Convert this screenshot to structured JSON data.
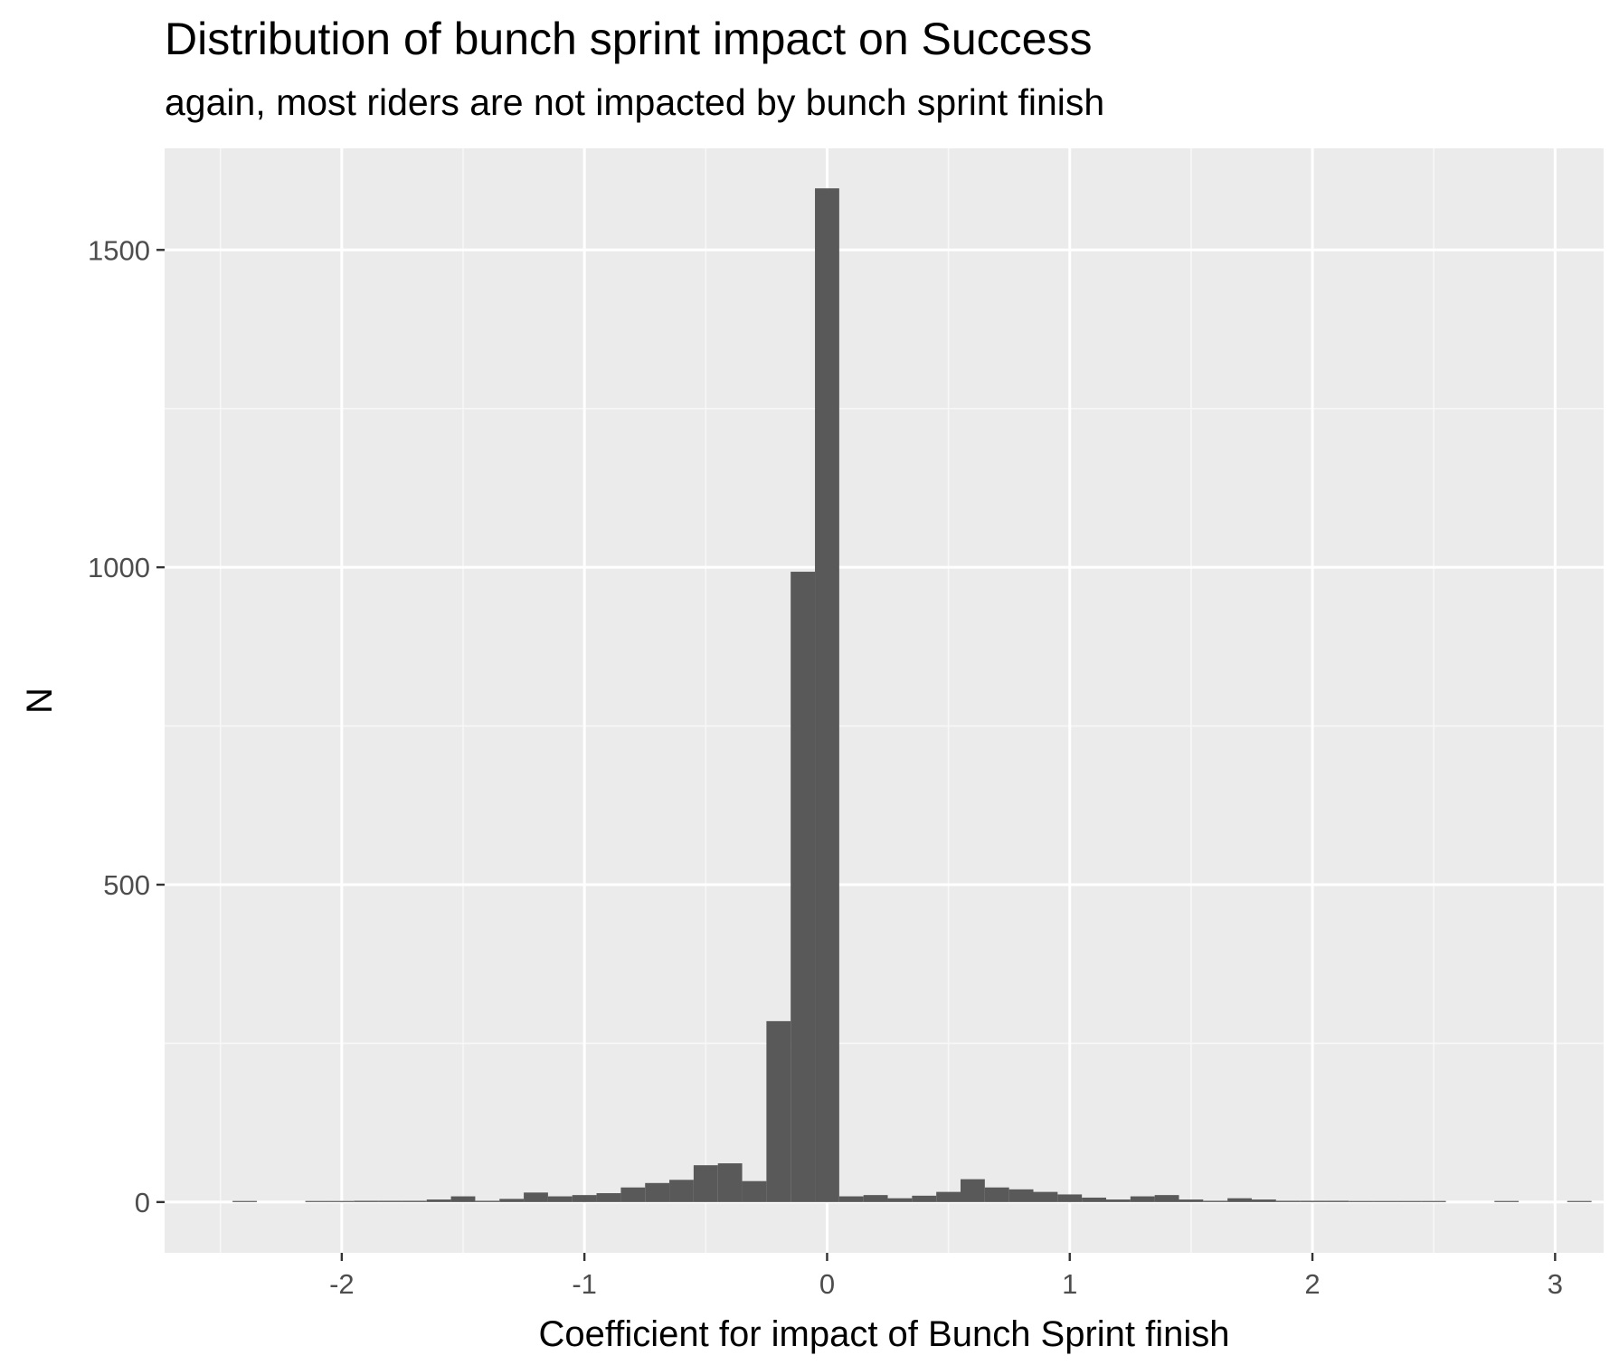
{
  "chart_data": {
    "type": "bar",
    "title": "Distribution of bunch sprint impact on Success",
    "subtitle": "again, most riders are not impacted by bunch sprint finish",
    "xlabel": "Coefficient for impact of Bunch Sprint finish",
    "ylabel": "N",
    "xlim": [
      -2.73,
      3.2
    ],
    "ylim": [
      -80,
      1660
    ],
    "xticks": [
      -2,
      -1,
      0,
      1,
      2,
      3
    ],
    "xtick_labels": [
      "-2",
      "-1",
      "0",
      "1",
      "2",
      "3"
    ],
    "yticks": [
      0,
      500,
      1000,
      1500
    ],
    "ytick_labels": [
      "0",
      "500",
      "1000",
      "1500"
    ],
    "grid": true,
    "bin_width": 0.1,
    "bins": [
      {
        "x": -2.4,
        "n": 1
      },
      {
        "x": -2.1,
        "n": 1
      },
      {
        "x": -2.0,
        "n": 1
      },
      {
        "x": -1.9,
        "n": 2
      },
      {
        "x": -1.8,
        "n": 2
      },
      {
        "x": -1.7,
        "n": 2
      },
      {
        "x": -1.6,
        "n": 4
      },
      {
        "x": -1.5,
        "n": 9
      },
      {
        "x": -1.4,
        "n": 2
      },
      {
        "x": -1.3,
        "n": 5
      },
      {
        "x": -1.2,
        "n": 15
      },
      {
        "x": -1.1,
        "n": 9
      },
      {
        "x": -1.0,
        "n": 11
      },
      {
        "x": -0.9,
        "n": 14
      },
      {
        "x": -0.8,
        "n": 23
      },
      {
        "x": -0.7,
        "n": 30
      },
      {
        "x": -0.6,
        "n": 35
      },
      {
        "x": -0.5,
        "n": 58
      },
      {
        "x": -0.4,
        "n": 61
      },
      {
        "x": -0.3,
        "n": 33
      },
      {
        "x": -0.2,
        "n": 285
      },
      {
        "x": -0.1,
        "n": 993
      },
      {
        "x": 0.0,
        "n": 1597
      },
      {
        "x": 0.1,
        "n": 9
      },
      {
        "x": 0.2,
        "n": 11
      },
      {
        "x": 0.3,
        "n": 6
      },
      {
        "x": 0.4,
        "n": 10
      },
      {
        "x": 0.5,
        "n": 16
      },
      {
        "x": 0.6,
        "n": 36
      },
      {
        "x": 0.7,
        "n": 23
      },
      {
        "x": 0.8,
        "n": 20
      },
      {
        "x": 0.9,
        "n": 16
      },
      {
        "x": 1.0,
        "n": 12
      },
      {
        "x": 1.1,
        "n": 7
      },
      {
        "x": 1.2,
        "n": 4
      },
      {
        "x": 1.3,
        "n": 9
      },
      {
        "x": 1.4,
        "n": 11
      },
      {
        "x": 1.5,
        "n": 4
      },
      {
        "x": 1.6,
        "n": 2
      },
      {
        "x": 1.7,
        "n": 6
      },
      {
        "x": 1.8,
        "n": 4
      },
      {
        "x": 1.9,
        "n": 2
      },
      {
        "x": 2.0,
        "n": 2
      },
      {
        "x": 2.1,
        "n": 2
      },
      {
        "x": 2.2,
        "n": 1
      },
      {
        "x": 2.3,
        "n": 1
      },
      {
        "x": 2.4,
        "n": 1
      },
      {
        "x": 2.5,
        "n": 1
      },
      {
        "x": 2.8,
        "n": 1
      },
      {
        "x": 3.1,
        "n": 1
      }
    ]
  },
  "colors": {
    "panel_background": "#ebebeb",
    "grid_major": "#ffffff",
    "grid_minor": "#f7f7f7",
    "bar_fill": "#595959",
    "tick_label": "#4d4d4d",
    "axis_title": "#000000"
  }
}
